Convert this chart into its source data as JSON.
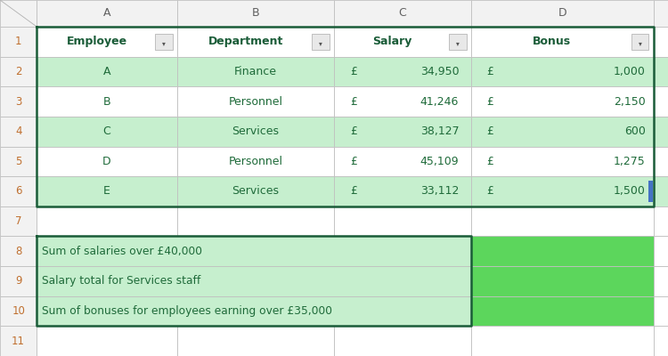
{
  "col_letters": [
    "A",
    "B",
    "C",
    "D"
  ],
  "row_numbers": [
    "1",
    "2",
    "3",
    "4",
    "5",
    "6",
    "7",
    "8",
    "9",
    "10",
    "11"
  ],
  "header_row": [
    "Employee",
    "Department",
    "Salary",
    "Bonus"
  ],
  "data_rows": [
    [
      "A",
      "Finance",
      "34,950",
      "1,000"
    ],
    [
      "B",
      "Personnel",
      "41,246",
      "2,150"
    ],
    [
      "C",
      "Services",
      "38,127",
      "600"
    ],
    [
      "D",
      "Personnel",
      "45,109",
      "1,275"
    ],
    [
      "E",
      "Services",
      "33,112",
      "1,500"
    ]
  ],
  "calc_labels": [
    "Sum of salaries over £40,000",
    "Salary total for Services staff",
    "Sum of bonuses for employees earning over £35,000"
  ],
  "bg_white": "#ffffff",
  "bg_gray": "#f2f2f2",
  "bg_green_light": "#c6efce",
  "bg_green_result": "#5cd65c",
  "text_dark_green": "#1f6b3a",
  "text_header_green": "#1a5c38",
  "text_row_num": "#c07030",
  "grid_color": "#d0d0d0",
  "pound_sign": "£",
  "green_rows": [
    0,
    2,
    4
  ],
  "figsize": [
    7.5,
    4.0
  ],
  "dpi": 100
}
